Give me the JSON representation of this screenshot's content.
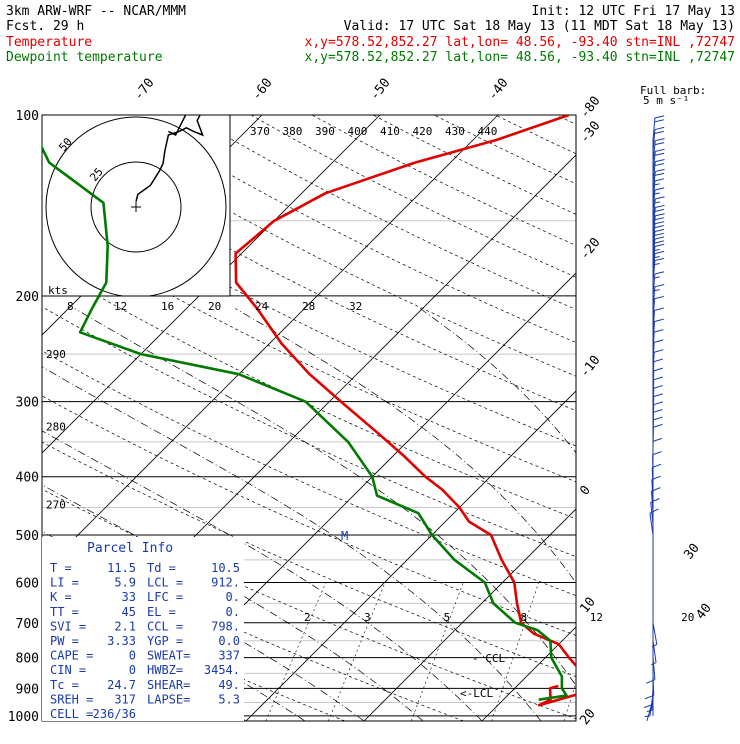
{
  "header": {
    "model": "3km ARW-WRF -- NCAR/MMM",
    "init": "Init: 12 UTC Fri 17 May 13",
    "fcst": "Fcst.    29 h",
    "valid": "Valid: 17 UTC Sat 18 May 13 (11 MDT Sat 18 May 13)",
    "temp_label": "Temperature",
    "temp_loc": "x,y=578.52,852.27   lat,lon= 48.56, -93.40   stn=INL ,72747",
    "dew_label": "Dewpoint temperature",
    "dew_loc": "x,y=578.52,852.27   lat,lon= 48.56, -93.40   stn=INL ,72747"
  },
  "colors": {
    "temperature": "#e00000",
    "dewpoint": "#007a00",
    "barbs": "#1a3aa8",
    "parcel_info": "#1a3aa8"
  },
  "barb_key": {
    "title": "Full barb:",
    "value": "5 m s⁻¹"
  },
  "parcel": {
    "title": "Parcel Info",
    "rows": [
      {
        "l1": "T  =",
        "v1": "11.5",
        "l2": "Td =",
        "v2": "10.5"
      },
      {
        "l1": "LI =",
        "v1": "5.9",
        "l2": "LCL =",
        "v2": "912."
      },
      {
        "l1": "K  =",
        "v1": "33",
        "l2": "LFC =",
        "v2": "0."
      },
      {
        "l1": "TT =",
        "v1": "45",
        "l2": "EL  =",
        "v2": "0."
      },
      {
        "l1": "SVI =",
        "v1": "2.1",
        "l2": "CCL =",
        "v2": "798."
      },
      {
        "l1": "PW =",
        "v1": "3.33",
        "l2": "YGP =",
        "v2": "0.0"
      },
      {
        "l1": "CAPE =",
        "v1": "0",
        "l2": "SWEAT=",
        "v2": "337"
      },
      {
        "l1": "CIN =",
        "v1": "0",
        "l2": "HWBZ=",
        "v2": "3454."
      },
      {
        "l1": "Tc =",
        "v1": "24.7",
        "l2": "SHEAR=",
        "v2": "49."
      },
      {
        "l1": "SREH =",
        "v1": "317",
        "l2": "LAPSE=",
        "v2": "5.3"
      },
      {
        "l1": "CELL =",
        "v1": "236/36",
        "l2": "",
        "v2": ""
      }
    ]
  },
  "annotations": {
    "ccl": "- CCL",
    "lcl": "<-LCL",
    "m": "M"
  },
  "hodograph": {
    "units_label": "kts",
    "ring_labels": [
      "25",
      "50"
    ],
    "hodo_path": [
      [
        0,
        -1.5
      ],
      [
        0.5,
        -3.5
      ],
      [
        4,
        -6
      ],
      [
        6.5,
        -10
      ],
      [
        7.5,
        -12
      ],
      [
        8,
        -15.5
      ],
      [
        9,
        -20
      ],
      [
        12,
        -21
      ],
      [
        14,
        -22
      ],
      [
        16,
        -21
      ],
      [
        18.5,
        -20
      ],
      [
        17,
        -24
      ],
      [
        18,
        -26
      ],
      [
        14,
        -26
      ],
      [
        12,
        -22
      ],
      [
        11,
        -20
      ],
      [
        9,
        -21
      ]
    ]
  },
  "chart_data": {
    "type": "line",
    "chart_kind": "Skew-T log-P diagram",
    "y_scale": "log (pressure, hPa)",
    "pressure_levels": [
      100,
      200,
      300,
      400,
      500,
      600,
      700,
      800,
      900,
      1000
    ],
    "isotherm_labels": [
      "-80",
      "-70",
      "-60",
      "-50",
      "-40",
      "-30",
      "-20",
      "-10",
      "0",
      "10",
      "20",
      "30",
      "40"
    ],
    "dry_adiabat_labels": [
      {
        "k": "290",
        "p": 250
      },
      {
        "k": "280",
        "p": 330
      },
      {
        "k": "270",
        "p": 445
      }
    ],
    "moist_adiabat_labels": [
      "370",
      "380",
      "390",
      "400",
      "410",
      "420",
      "430",
      "440"
    ],
    "hodo_speed_labels": [
      "8",
      "12",
      "16",
      "20",
      "24",
      "28",
      "32"
    ],
    "mixing_ratio_labels": [
      "2",
      "3",
      "5",
      "8",
      "12",
      "20"
    ],
    "series": [
      {
        "name": "Temperature",
        "color": "#e00000",
        "points": [
          [
            892,
            13.5
          ],
          [
            900,
            13
          ],
          [
            940,
            14
          ],
          [
            960,
            13.5
          ],
          [
            910,
            16.5
          ],
          [
            880,
            17
          ],
          [
            850,
            14.5
          ],
          [
            800,
            12
          ],
          [
            760,
            10
          ],
          [
            730,
            7
          ],
          [
            700,
            5
          ],
          [
            650,
            3
          ],
          [
            600,
            1
          ],
          [
            550,
            -2
          ],
          [
            500,
            -5
          ],
          [
            475,
            -8
          ],
          [
            450,
            -10
          ],
          [
            420,
            -13
          ],
          [
            400,
            -15.5
          ],
          [
            370,
            -19
          ],
          [
            340,
            -23
          ],
          [
            300,
            -29
          ],
          [
            270,
            -34
          ],
          [
            240,
            -39
          ],
          [
            210,
            -44
          ],
          [
            190,
            -48
          ],
          [
            170,
            -50.5
          ],
          [
            150,
            -50
          ],
          [
            135,
            -48
          ],
          [
            120,
            -43
          ],
          [
            110,
            -38
          ],
          [
            100,
            -34
          ]
        ]
      },
      {
        "name": "Dewpoint temperature",
        "color": "#007a00",
        "points": [
          [
            940,
            13
          ],
          [
            925,
            15
          ],
          [
            900,
            14
          ],
          [
            860,
            13
          ],
          [
            800,
            10.5
          ],
          [
            750,
            9
          ],
          [
            720,
            7
          ],
          [
            700,
            4.5
          ],
          [
            650,
            1
          ],
          [
            600,
            -1.5
          ],
          [
            550,
            -6
          ],
          [
            500,
            -10
          ],
          [
            460,
            -13
          ],
          [
            430,
            -18
          ],
          [
            400,
            -20
          ],
          [
            350,
            -25
          ],
          [
            300,
            -32
          ],
          [
            270,
            -40
          ],
          [
            250,
            -50
          ],
          [
            230,
            -57
          ],
          [
            210,
            -58
          ],
          [
            190,
            -59
          ],
          [
            165,
            -62
          ],
          [
            140,
            -66
          ],
          [
            120,
            -74
          ],
          [
            100,
            -80
          ]
        ]
      }
    ],
    "wind_barbs": [
      [
        110,
        5,
        23
      ],
      [
        115,
        5,
        20
      ],
      [
        120,
        6,
        22
      ],
      [
        125,
        6,
        20
      ],
      [
        130,
        6,
        22
      ],
      [
        135,
        6,
        20
      ],
      [
        140,
        5,
        18
      ],
      [
        145,
        5,
        18
      ],
      [
        150,
        6,
        18
      ],
      [
        155,
        6,
        20
      ],
      [
        160,
        6,
        22
      ],
      [
        165,
        5,
        20
      ],
      [
        170,
        5,
        22
      ],
      [
        175,
        5,
        20
      ],
      [
        180,
        5,
        18
      ],
      [
        185,
        5,
        18
      ],
      [
        190,
        5,
        17
      ],
      [
        200,
        5,
        16
      ],
      [
        210,
        5,
        15
      ],
      [
        220,
        4,
        14
      ],
      [
        230,
        4,
        14
      ],
      [
        240,
        4,
        13
      ],
      [
        250,
        3,
        13
      ],
      [
        260,
        3,
        12
      ],
      [
        270,
        3,
        13
      ],
      [
        280,
        2,
        13
      ],
      [
        290,
        2,
        13
      ],
      [
        300,
        2,
        13
      ],
      [
        310,
        2,
        13
      ],
      [
        320,
        2,
        13
      ],
      [
        330,
        2,
        13
      ],
      [
        340,
        1,
        12
      ],
      [
        350,
        1,
        12
      ],
      [
        360,
        1,
        12
      ],
      [
        380,
        0,
        12
      ],
      [
        400,
        359,
        12
      ],
      [
        420,
        358,
        12
      ],
      [
        440,
        357,
        12
      ],
      [
        460,
        356,
        11
      ],
      [
        480,
        354,
        11
      ],
      [
        500,
        352,
        11
      ],
      [
        700,
        170,
        8
      ],
      [
        750,
        172,
        8
      ],
      [
        800,
        175,
        10
      ],
      [
        850,
        178,
        10
      ],
      [
        880,
        180,
        11
      ],
      [
        900,
        183,
        8
      ],
      [
        920,
        188,
        5
      ],
      [
        940,
        196,
        4
      ]
    ]
  }
}
